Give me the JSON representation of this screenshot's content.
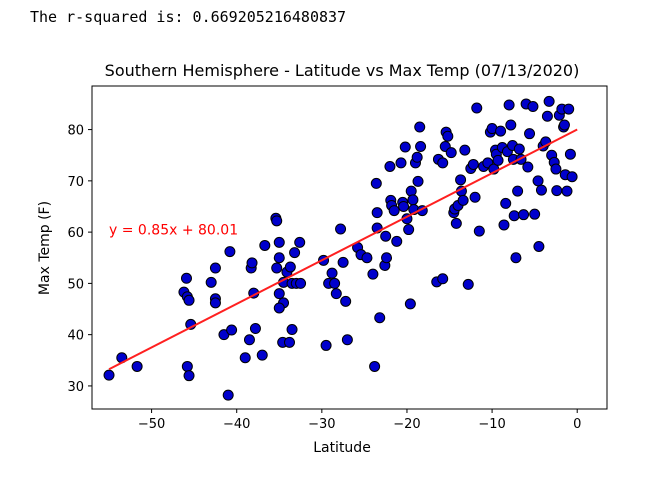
{
  "output": {
    "text": "The r-squared is: 0.669205216480837"
  },
  "chart_data": {
    "type": "scatter",
    "title": "Southern Hemisphere - Latitude vs Max Temp (07/13/2020)",
    "xlabel": "Latitude",
    "ylabel": "Max Temp (F)",
    "xlim": [
      -57,
      3.5
    ],
    "ylim": [
      25.5,
      88.5
    ],
    "xticks": [
      -50,
      -40,
      -30,
      -20,
      -10,
      0
    ],
    "xtick_labels": [
      "−50",
      "−40",
      "−30",
      "−20",
      "−10",
      "0"
    ],
    "yticks": [
      30,
      40,
      50,
      60,
      70,
      80
    ],
    "ytick_labels": [
      "30",
      "40",
      "50",
      "60",
      "70",
      "80"
    ],
    "grid": false,
    "marker_color": "#0000cc",
    "marker_edge": "#000000",
    "line_color": "#ff2020",
    "regression": {
      "slope": 0.85,
      "intercept": 80.01,
      "x_range": [
        -55,
        0
      ]
    },
    "annotation": {
      "text": "y = 0.85x + 80.01",
      "color": "#ff0000",
      "x": -55,
      "y": 59.5
    },
    "points": [
      [
        -55,
        32.1
      ],
      [
        -53.5,
        35.5
      ],
      [
        -51.7,
        33.8
      ],
      [
        -46.2,
        48.3
      ],
      [
        -45.9,
        51
      ],
      [
        -45.8,
        47.4
      ],
      [
        -45.6,
        46.7
      ],
      [
        -45.4,
        42
      ],
      [
        -45.8,
        33.8
      ],
      [
        -45.6,
        32
      ],
      [
        -42.5,
        53
      ],
      [
        -43,
        50.2
      ],
      [
        -42.5,
        47
      ],
      [
        -42.5,
        46.2
      ],
      [
        -41.5,
        40
      ],
      [
        -40.8,
        56.2
      ],
      [
        -40.6,
        40.9
      ],
      [
        -41,
        28.2
      ],
      [
        -39,
        35.5
      ],
      [
        -38.5,
        39
      ],
      [
        -38.3,
        53
      ],
      [
        -38.2,
        54
      ],
      [
        -38,
        48.1
      ],
      [
        -37.8,
        41.2
      ],
      [
        -37,
        36
      ],
      [
        -36.7,
        57.4
      ],
      [
        -35.4,
        62.7
      ],
      [
        -35.3,
        62.2
      ],
      [
        -35.3,
        53
      ],
      [
        -35,
        58
      ],
      [
        -35,
        55
      ],
      [
        -35,
        48
      ],
      [
        -34.5,
        46.2
      ],
      [
        -35,
        45.2
      ],
      [
        -34.6,
        38.5
      ],
      [
        -33.8,
        38.5
      ],
      [
        -34.5,
        50.2
      ],
      [
        -34.1,
        52.2
      ],
      [
        -33.7,
        53.2
      ],
      [
        -33.5,
        50
      ],
      [
        -33.2,
        56
      ],
      [
        -33.5,
        41
      ],
      [
        -33,
        50
      ],
      [
        -32.6,
        58
      ],
      [
        -32.5,
        50
      ],
      [
        -29.8,
        54.5
      ],
      [
        -29.5,
        37.9
      ],
      [
        -29.2,
        50
      ],
      [
        -28.8,
        52
      ],
      [
        -28.5,
        50
      ],
      [
        -28.3,
        48
      ],
      [
        -27.8,
        60.6
      ],
      [
        -27.5,
        54.1
      ],
      [
        -27.2,
        46.5
      ],
      [
        -27,
        39
      ],
      [
        -25.8,
        57
      ],
      [
        -25.4,
        55.6
      ],
      [
        -24.7,
        55
      ],
      [
        -24,
        51.8
      ],
      [
        -23.6,
        69.5
      ],
      [
        -23.5,
        63.8
      ],
      [
        -23.5,
        60.8
      ],
      [
        -23.8,
        33.8
      ],
      [
        -23.2,
        43.3
      ],
      [
        -22.6,
        53.5
      ],
      [
        -22.5,
        59.2
      ],
      [
        -22.4,
        55
      ],
      [
        -22,
        72.8
      ],
      [
        -21.9,
        66.2
      ],
      [
        -21.8,
        65.2
      ],
      [
        -21.5,
        64.2
      ],
      [
        -21.2,
        58.2
      ],
      [
        -20.7,
        73.5
      ],
      [
        -20.5,
        65.8
      ],
      [
        -20.4,
        65
      ],
      [
        -20.2,
        76.6
      ],
      [
        -20,
        62.6
      ],
      [
        -19.8,
        60.5
      ],
      [
        -19.6,
        46
      ],
      [
        -19.5,
        68
      ],
      [
        -19.3,
        66.3
      ],
      [
        -19.2,
        64.4
      ],
      [
        -19,
        73.5
      ],
      [
        -18.8,
        74.6
      ],
      [
        -18.7,
        69.9
      ],
      [
        -18.5,
        80.5
      ],
      [
        -18.4,
        76.7
      ],
      [
        -18.2,
        64.2
      ],
      [
        -16.5,
        50.3
      ],
      [
        -16.3,
        74.2
      ],
      [
        -15.8,
        73.5
      ],
      [
        -15.8,
        50.9
      ],
      [
        -15.5,
        76.7
      ],
      [
        -15.4,
        79.5
      ],
      [
        -15.2,
        78.7
      ],
      [
        -14.8,
        75.5
      ],
      [
        -14.5,
        63.8
      ],
      [
        -14.4,
        64.5
      ],
      [
        -14.2,
        61.7
      ],
      [
        -14,
        65.2
      ],
      [
        -13.7,
        70.2
      ],
      [
        -13.6,
        68
      ],
      [
        -13.4,
        66.2
      ],
      [
        -13.2,
        76
      ],
      [
        -12.8,
        49.8
      ],
      [
        -12.5,
        72.4
      ],
      [
        -12.2,
        73.2
      ],
      [
        -12,
        66.8
      ],
      [
        -11.8,
        84.2
      ],
      [
        -11.5,
        60.2
      ],
      [
        -11,
        72.8
      ],
      [
        -10.5,
        73.5
      ],
      [
        -10.2,
        79.5
      ],
      [
        -10,
        80.2
      ],
      [
        -9.8,
        72.3
      ],
      [
        -9.6,
        76
      ],
      [
        -9.5,
        75.2
      ],
      [
        -9.3,
        74
      ],
      [
        -9,
        79.7
      ],
      [
        -8.8,
        76.5
      ],
      [
        -8.6,
        61.4
      ],
      [
        -8.4,
        65.6
      ],
      [
        -8.2,
        75.7
      ],
      [
        -8,
        84.8
      ],
      [
        -7.8,
        80.9
      ],
      [
        -7.6,
        76.9
      ],
      [
        -7.5,
        74.2
      ],
      [
        -7.4,
        63.2
      ],
      [
        -7.2,
        55
      ],
      [
        -7,
        68
      ],
      [
        -6.8,
        76.2
      ],
      [
        -6.6,
        74.2
      ],
      [
        -6.3,
        63.4
      ],
      [
        -6,
        85
      ],
      [
        -5.8,
        72.7
      ],
      [
        -5.6,
        79.2
      ],
      [
        -5.2,
        84.5
      ],
      [
        -5,
        63.5
      ],
      [
        -4.6,
        70
      ],
      [
        -4.5,
        57.2
      ],
      [
        -4.2,
        68.2
      ],
      [
        -4,
        76.8
      ],
      [
        -3.7,
        77.6
      ],
      [
        -3.5,
        82.6
      ],
      [
        -3.3,
        85.5
      ],
      [
        -3,
        75
      ],
      [
        -2.7,
        73.6
      ],
      [
        -2.5,
        72.3
      ],
      [
        -2.4,
        68.1
      ],
      [
        -2.1,
        82.8
      ],
      [
        -1.8,
        84
      ],
      [
        -1.6,
        80.5
      ],
      [
        -1.4,
        71.2
      ],
      [
        -1.2,
        68
      ],
      [
        -1,
        84
      ],
      [
        -0.8,
        75.2
      ],
      [
        -0.6,
        70.8
      ],
      [
        -1.5,
        80.9
      ]
    ]
  }
}
